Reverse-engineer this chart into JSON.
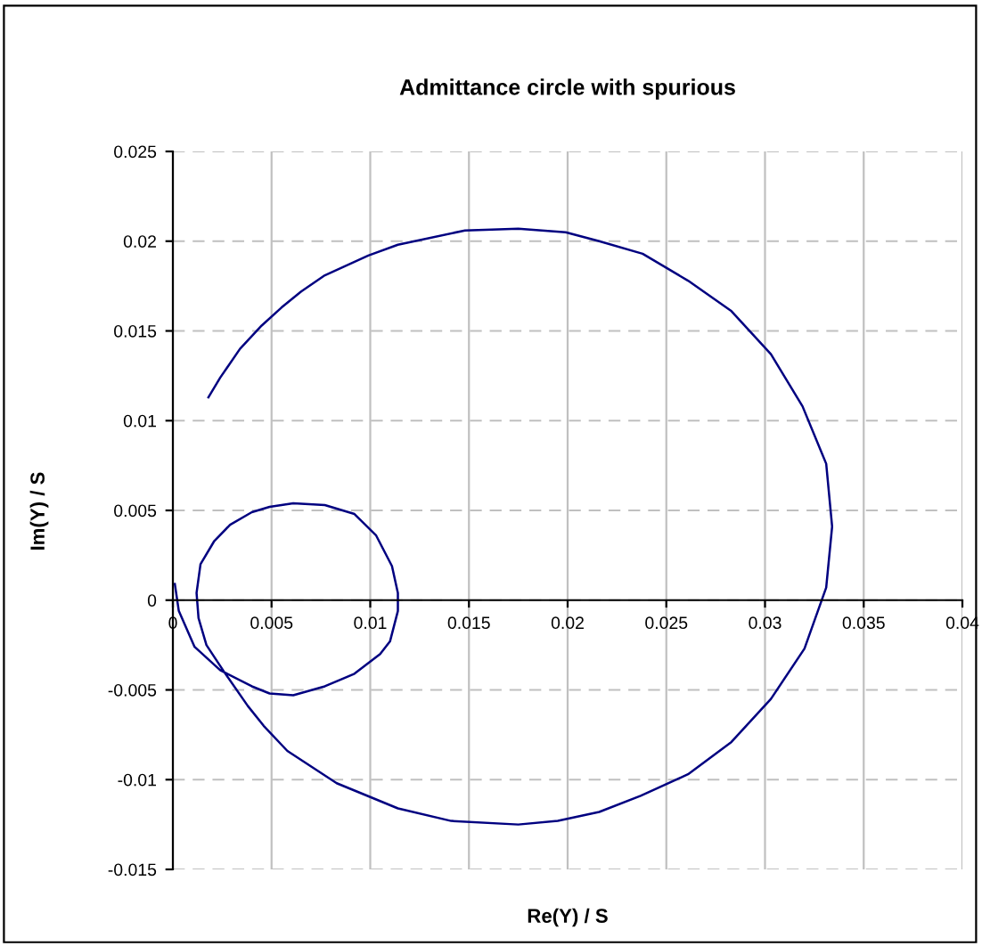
{
  "chart_data": {
    "type": "line",
    "title": "Admittance circle with spurious",
    "xlabel": "Re(Y) / S",
    "ylabel": "Im(Y) / S",
    "series": [
      {
        "color": "#000080",
        "x": [
          0.0001,
          0.0003,
          0.0011,
          0.0024,
          0.004,
          0.0049,
          0.0061,
          0.0077,
          0.0092,
          0.0105,
          0.011,
          0.0114,
          0.0114,
          0.0111,
          0.0103,
          0.0092,
          0.0077,
          0.0061,
          0.0049,
          0.004,
          0.0029,
          0.0021,
          0.0014,
          0.0012,
          0.0013,
          0.0017,
          0.0026,
          0.0038,
          0.0046,
          0.0058,
          0.0083,
          0.0114,
          0.0141,
          0.0175,
          0.0195,
          0.0216,
          0.0237,
          0.0261,
          0.0283,
          0.0303,
          0.032,
          0.0331,
          0.0334,
          0.0331,
          0.0319,
          0.0303,
          0.0283,
          0.0261,
          0.0238,
          0.0216,
          0.0199,
          0.0175,
          0.0148,
          0.0114,
          0.0099,
          0.0077,
          0.0065,
          0.0055,
          0.0045,
          0.0034,
          0.0024,
          0.0018
        ],
        "values": [
          0.0009,
          -0.0006,
          -0.0026,
          -0.0039,
          -0.0048,
          -0.0052,
          -0.0053,
          -0.0048,
          -0.0041,
          -0.003,
          -0.0023,
          -0.0006,
          0.0004,
          0.0019,
          0.0036,
          0.0048,
          0.0053,
          0.0054,
          0.0052,
          0.0049,
          0.0042,
          0.0033,
          0.002,
          0.0004,
          -0.001,
          -0.0025,
          -0.004,
          -0.0059,
          -0.007,
          -0.0084,
          -0.0102,
          -0.0116,
          -0.0123,
          -0.0125,
          -0.0123,
          -0.0118,
          -0.0109,
          -0.0097,
          -0.0079,
          -0.0055,
          -0.0027,
          0.0007,
          0.0041,
          0.0076,
          0.0108,
          0.0137,
          0.0161,
          0.0178,
          0.0193,
          0.02,
          0.0205,
          0.0207,
          0.0206,
          0.0198,
          0.0192,
          0.0181,
          0.0172,
          0.0163,
          0.0153,
          0.014,
          0.0124,
          0.0113
        ]
      }
    ],
    "xlim": [
      0,
      0.04
    ],
    "xticks": [
      0,
      0.005,
      0.01,
      0.015,
      0.02,
      0.025,
      0.03,
      0.035,
      0.04
    ],
    "ylim": [
      -0.015,
      0.025
    ],
    "yticks": [
      -0.015,
      -0.01,
      -0.005,
      0,
      0.005,
      0.01,
      0.015,
      0.02,
      0.025
    ],
    "grid": true,
    "marker": "none",
    "line_style": "solid",
    "legend": false
  }
}
